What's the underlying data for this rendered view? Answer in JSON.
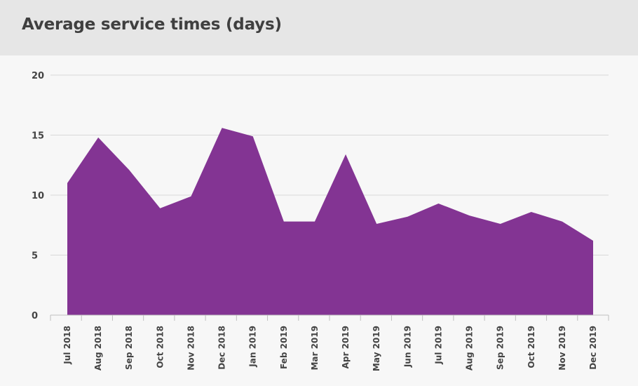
{
  "header": {
    "title": "Average service times (days)"
  },
  "colors": {
    "area_fill": "#833493",
    "header_background": "#e6e6e6",
    "plot_background": "#f7f7f7"
  },
  "chart_data": {
    "type": "area",
    "title": "Average service times (days)",
    "xlabel": "",
    "ylabel": "",
    "categories": [
      "Jul 2018",
      "Aug 2018",
      "Sep 2018",
      "Oct 2018",
      "Nov 2018",
      "Dec 2018",
      "Jan 2019",
      "Feb 2019",
      "Mar 2019",
      "Apr 2019",
      "May 2019",
      "Jun 2019",
      "Jul 2019",
      "Aug 2019",
      "Sep 2019",
      "Oct 2019",
      "Nov 2019",
      "Dec 2019"
    ],
    "series": [
      {
        "values": [
          11.0,
          14.8,
          12.1,
          8.9,
          9.9,
          15.6,
          14.9,
          7.8,
          7.8,
          13.4,
          7.6,
          8.2,
          9.3,
          8.3,
          7.6,
          8.6,
          7.8,
          6.2
        ],
        "color": "#833493"
      }
    ],
    "ylim": [
      0,
      20
    ],
    "yticks": [
      0,
      5,
      10,
      15,
      20
    ],
    "ytick_labels": [
      "0",
      "5",
      "10",
      "15",
      "20"
    ],
    "grid": true,
    "legend": "none"
  }
}
